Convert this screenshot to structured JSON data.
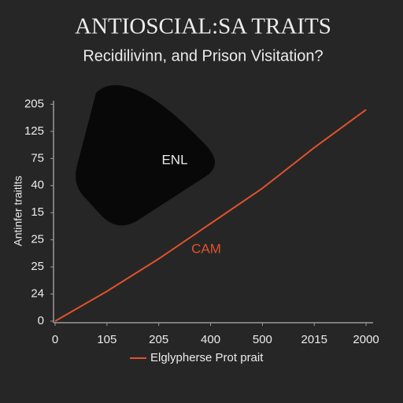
{
  "chart_data": {
    "type": "line",
    "title": "ANTIOSCIAL:SA TRAITS",
    "subtitle": "Recidilivinn, and Prison Visitation?",
    "y_label": "Antinfer traitlts",
    "annotations": [
      "ENL",
      "CAM"
    ],
    "x": [
      0,
      1,
      2,
      3,
      4,
      5,
      6
    ],
    "series": [
      {
        "name": "Elglypherse Prot prait",
        "color": "#e0522a",
        "values": [
          0,
          1.1,
          2.3,
          3.6,
          4.9,
          6.4,
          7.8
        ]
      }
    ],
    "xlim": [
      0,
      6.12
    ],
    "ylim": [
      0,
      8.1
    ],
    "xticks": [
      0,
      {
        "value": 1,
        "label": "105"
      },
      {
        "value": 2,
        "label": "205"
      },
      {
        "value": 3,
        "label": "400"
      },
      {
        "value": 4,
        "label": "500"
      },
      {
        "value": 5,
        "label": "2015"
      },
      {
        "value": 6,
        "label": "2000"
      }
    ],
    "yticks": [
      0,
      {
        "value": 1,
        "label": "24"
      },
      {
        "value": 2,
        "label": "25"
      },
      {
        "value": 3,
        "label": "25"
      },
      {
        "value": 4,
        "label": "15"
      },
      {
        "value": 5,
        "label": "40"
      },
      {
        "value": 6,
        "label": "75"
      },
      {
        "value": 7,
        "label": "125"
      },
      {
        "value": 8,
        "label": "205"
      }
    ]
  }
}
